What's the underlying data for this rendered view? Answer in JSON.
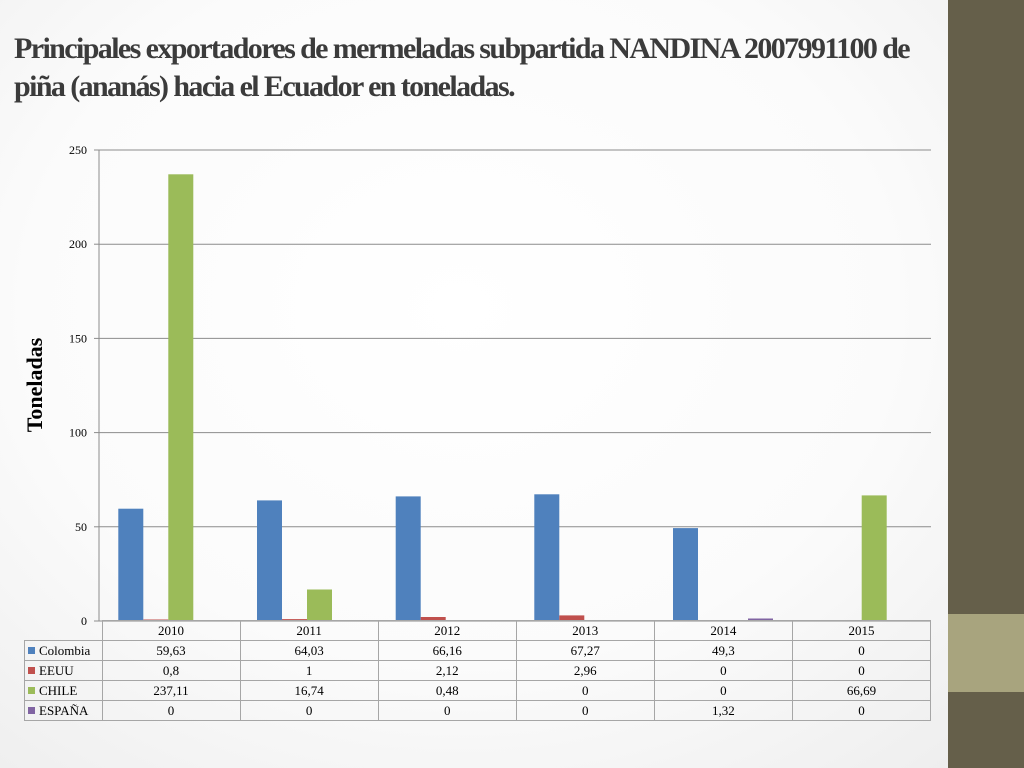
{
  "title": "Principales exportadores de mermeladas subpartida NANDINA 2007991100 de piña (ananás) hacia el Ecuador en toneladas.",
  "chart_data": {
    "type": "bar",
    "title": "",
    "xlabel": "",
    "ylabel": "Toneladas",
    "ylim": [
      0,
      250
    ],
    "yticks": [
      0,
      50,
      100,
      150,
      200,
      250
    ],
    "grid": true,
    "legend": "data-table",
    "categories": [
      "2010",
      "2011",
      "2012",
      "2013",
      "2014",
      "2015"
    ],
    "series": [
      {
        "name": "Colombia",
        "color": "#4f81bd",
        "values": [
          59.63,
          64.03,
          66.16,
          67.27,
          49.3,
          0
        ],
        "labels": [
          "59,63",
          "64,03",
          "66,16",
          "67,27",
          "49,3",
          "0"
        ]
      },
      {
        "name": "EEUU",
        "color": "#c0504d",
        "values": [
          0.8,
          1,
          2.12,
          2.96,
          0,
          0
        ],
        "labels": [
          "0,8",
          "1",
          "2,12",
          "2,96",
          "0",
          "0"
        ]
      },
      {
        "name": "CHILE",
        "color": "#9bbb59",
        "values": [
          237.11,
          16.74,
          0.48,
          0,
          0,
          66.69
        ],
        "labels": [
          "237,11",
          "16,74",
          "0,48",
          "0",
          "0",
          "66,69"
        ]
      },
      {
        "name": "ESPAÑA",
        "color": "#8064a2",
        "values": [
          0,
          0,
          0,
          0,
          1.32,
          0
        ],
        "labels": [
          "0",
          "0",
          "0",
          "0",
          "1,32",
          "0"
        ]
      }
    ]
  }
}
